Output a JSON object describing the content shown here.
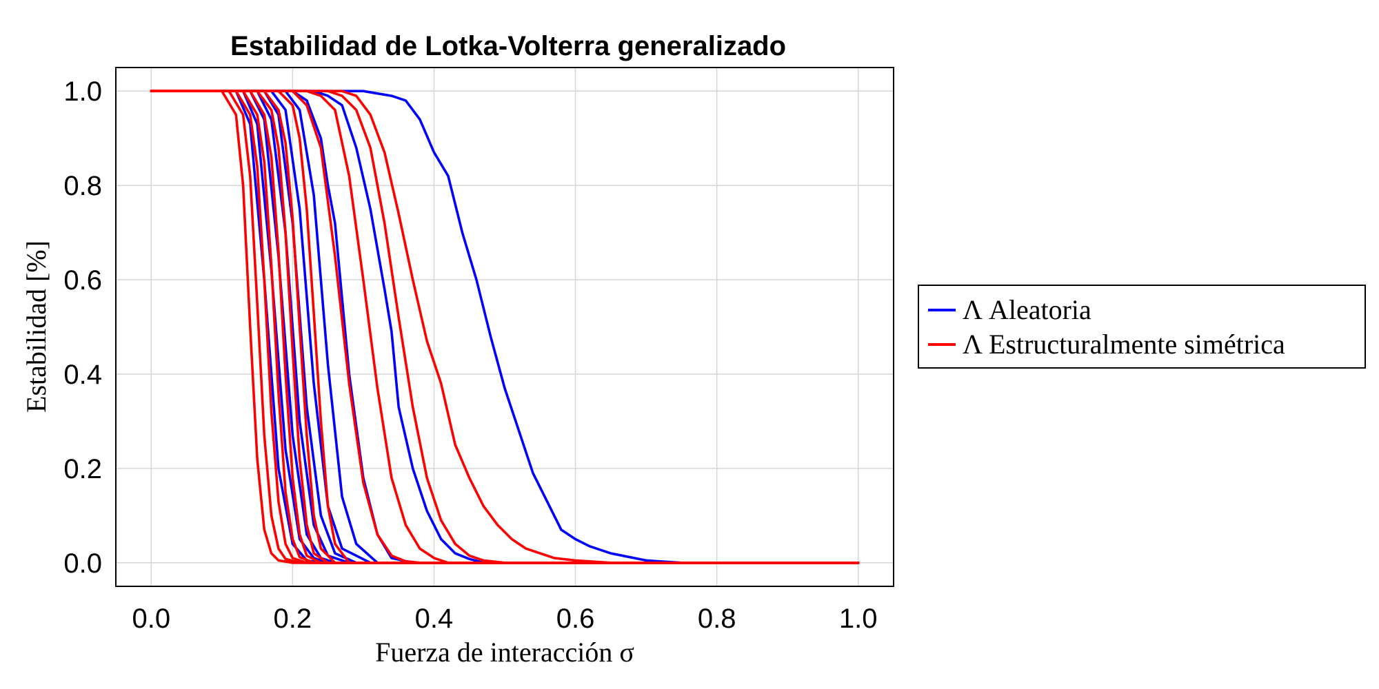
{
  "chart_data": {
    "type": "line",
    "title": "Estabilidad de Lotka-Volterra generalizado",
    "xlabel": "Fuerza de interacción σ",
    "ylabel": "Estabilidad [%]",
    "xlim": [
      -0.05,
      1.05
    ],
    "ylim": [
      -0.05,
      1.05
    ],
    "xticks": [
      "0.0",
      "0.2",
      "0.4",
      "0.6",
      "0.8",
      "1.0"
    ],
    "yticks": [
      "0.0",
      "0.2",
      "0.4",
      "0.6",
      "0.8",
      "1.0"
    ],
    "grid": true,
    "legend_position": "right-outside",
    "legend": [
      {
        "label": "Λ Aleatoria",
        "color": "#0000ff"
      },
      {
        "label": "Λ Estructuralmente simétrica",
        "color": "#ff0000"
      }
    ],
    "series": [
      {
        "group": "Λ Aleatoria",
        "color": "#0000ff",
        "x": [
          0.0,
          0.12,
          0.14,
          0.16,
          0.18,
          0.2,
          0.22,
          0.24,
          1.0
        ],
        "y": [
          1.0,
          1.0,
          0.93,
          0.6,
          0.2,
          0.04,
          0.005,
          0.0,
          0.0
        ]
      },
      {
        "group": "Λ Aleatoria",
        "color": "#0000ff",
        "x": [
          0.0,
          0.13,
          0.15,
          0.17,
          0.19,
          0.21,
          0.23,
          0.25,
          1.0
        ],
        "y": [
          1.0,
          1.0,
          0.93,
          0.62,
          0.24,
          0.05,
          0.01,
          0.0,
          0.0
        ]
      },
      {
        "group": "Λ Aleatoria",
        "color": "#0000ff",
        "x": [
          0.0,
          0.14,
          0.16,
          0.18,
          0.2,
          0.22,
          0.24,
          0.26,
          1.0
        ],
        "y": [
          1.0,
          1.0,
          0.94,
          0.65,
          0.27,
          0.06,
          0.01,
          0.0,
          0.0
        ]
      },
      {
        "group": "Λ Aleatoria",
        "color": "#0000ff",
        "x": [
          0.0,
          0.15,
          0.17,
          0.19,
          0.21,
          0.23,
          0.25,
          0.28,
          1.0
        ],
        "y": [
          1.0,
          1.0,
          0.94,
          0.7,
          0.3,
          0.08,
          0.015,
          0.0,
          0.0
        ]
      },
      {
        "group": "Λ Aleatoria",
        "color": "#0000ff",
        "x": [
          0.0,
          0.16,
          0.18,
          0.2,
          0.22,
          0.24,
          0.26,
          0.29,
          1.0
        ],
        "y": [
          1.0,
          1.0,
          0.95,
          0.72,
          0.33,
          0.1,
          0.02,
          0.0,
          0.0
        ]
      },
      {
        "group": "Λ Aleatoria",
        "color": "#0000ff",
        "x": [
          0.0,
          0.17,
          0.19,
          0.21,
          0.23,
          0.25,
          0.27,
          0.31,
          1.0
        ],
        "y": [
          1.0,
          1.0,
          0.96,
          0.75,
          0.38,
          0.12,
          0.03,
          0.0,
          0.0
        ]
      },
      {
        "group": "Λ Aleatoria",
        "color": "#0000ff",
        "x": [
          0.0,
          0.19,
          0.21,
          0.23,
          0.25,
          0.27,
          0.29,
          0.32,
          1.0
        ],
        "y": [
          1.0,
          1.0,
          0.96,
          0.78,
          0.42,
          0.14,
          0.04,
          0.0,
          0.0
        ]
      },
      {
        "group": "Λ Aleatoria",
        "color": "#0000ff",
        "x": [
          0.0,
          0.2,
          0.22,
          0.24,
          0.25,
          0.26,
          0.28,
          0.3,
          0.32,
          0.34,
          0.37,
          1.0
        ],
        "y": [
          1.0,
          1.0,
          0.98,
          0.9,
          0.8,
          0.72,
          0.4,
          0.18,
          0.06,
          0.01,
          0.0,
          0.0
        ]
      },
      {
        "group": "Λ Aleatoria",
        "color": "#0000ff",
        "x": [
          0.0,
          0.2,
          0.23,
          0.25,
          0.27,
          0.29,
          0.31,
          0.33,
          0.34,
          0.35,
          0.37,
          0.39,
          0.41,
          0.43,
          0.45,
          0.47,
          1.0
        ],
        "y": [
          1.0,
          1.0,
          1.0,
          0.99,
          0.97,
          0.88,
          0.75,
          0.58,
          0.49,
          0.33,
          0.2,
          0.11,
          0.05,
          0.02,
          0.008,
          0.0,
          0.0
        ]
      },
      {
        "group": "Λ Aleatoria",
        "color": "#0000ff",
        "x": [
          0.0,
          0.3,
          0.32,
          0.34,
          0.36,
          0.38,
          0.4,
          0.42,
          0.44,
          0.46,
          0.48,
          0.5,
          0.52,
          0.54,
          0.56,
          0.58,
          0.6,
          0.62,
          0.65,
          0.7,
          0.75,
          1.0
        ],
        "y": [
          1.0,
          1.0,
          0.995,
          0.99,
          0.98,
          0.94,
          0.87,
          0.82,
          0.7,
          0.6,
          0.48,
          0.37,
          0.28,
          0.19,
          0.13,
          0.07,
          0.05,
          0.035,
          0.02,
          0.005,
          0.0,
          0.0
        ]
      },
      {
        "group": "Λ Estructuralmente simétrica",
        "color": "#ff0000",
        "x": [
          0.0,
          0.1,
          0.12,
          0.13,
          0.14,
          0.15,
          0.16,
          0.17,
          0.18,
          0.2,
          1.0
        ],
        "y": [
          1.0,
          1.0,
          0.95,
          0.8,
          0.5,
          0.22,
          0.07,
          0.02,
          0.005,
          0.0,
          0.0
        ]
      },
      {
        "group": "Λ Estructuralmente simétrica",
        "color": "#ff0000",
        "x": [
          0.0,
          0.11,
          0.13,
          0.14,
          0.15,
          0.16,
          0.17,
          0.18,
          0.19,
          0.21,
          1.0
        ],
        "y": [
          1.0,
          1.0,
          0.95,
          0.82,
          0.55,
          0.27,
          0.1,
          0.03,
          0.008,
          0.0,
          0.0
        ]
      },
      {
        "group": "Λ Estructuralmente simétrica",
        "color": "#ff0000",
        "x": [
          0.0,
          0.12,
          0.14,
          0.15,
          0.16,
          0.17,
          0.18,
          0.19,
          0.2,
          0.22,
          1.0
        ],
        "y": [
          1.0,
          1.0,
          0.95,
          0.84,
          0.6,
          0.32,
          0.13,
          0.04,
          0.01,
          0.0,
          0.0
        ]
      },
      {
        "group": "Λ Estructuralmente simétrica",
        "color": "#ff0000",
        "x": [
          0.0,
          0.13,
          0.15,
          0.16,
          0.17,
          0.18,
          0.19,
          0.2,
          0.21,
          0.23,
          1.0
        ],
        "y": [
          1.0,
          1.0,
          0.95,
          0.85,
          0.63,
          0.36,
          0.15,
          0.05,
          0.012,
          0.0,
          0.0
        ]
      },
      {
        "group": "Λ Estructuralmente simétrica",
        "color": "#ff0000",
        "x": [
          0.0,
          0.14,
          0.16,
          0.17,
          0.18,
          0.19,
          0.2,
          0.21,
          0.22,
          0.24,
          1.0
        ],
        "y": [
          1.0,
          1.0,
          0.95,
          0.86,
          0.66,
          0.4,
          0.18,
          0.06,
          0.015,
          0.0,
          0.0
        ]
      },
      {
        "group": "Λ Estructuralmente simétrica",
        "color": "#ff0000",
        "x": [
          0.0,
          0.15,
          0.17,
          0.18,
          0.19,
          0.2,
          0.21,
          0.22,
          0.23,
          0.25,
          1.0
        ],
        "y": [
          1.0,
          1.0,
          0.96,
          0.88,
          0.7,
          0.45,
          0.22,
          0.08,
          0.02,
          0.0,
          0.0
        ]
      },
      {
        "group": "Λ Estructuralmente simétrica",
        "color": "#ff0000",
        "x": [
          0.0,
          0.16,
          0.18,
          0.19,
          0.2,
          0.21,
          0.22,
          0.23,
          0.24,
          0.26,
          1.0
        ],
        "y": [
          1.0,
          1.0,
          0.96,
          0.89,
          0.73,
          0.5,
          0.27,
          0.1,
          0.03,
          0.0,
          0.0
        ]
      },
      {
        "group": "Λ Estructuralmente simétrica",
        "color": "#ff0000",
        "x": [
          0.0,
          0.18,
          0.2,
          0.21,
          0.22,
          0.23,
          0.24,
          0.25,
          0.26,
          0.28,
          1.0
        ],
        "y": [
          1.0,
          1.0,
          0.97,
          0.9,
          0.75,
          0.53,
          0.3,
          0.12,
          0.04,
          0.0,
          0.0
        ]
      },
      {
        "group": "Λ Estructuralmente simétrica",
        "color": "#ff0000",
        "x": [
          0.0,
          0.2,
          0.22,
          0.24,
          0.26,
          0.28,
          0.3,
          0.32,
          0.34,
          0.36,
          0.38,
          1.0
        ],
        "y": [
          1.0,
          1.0,
          0.97,
          0.88,
          0.65,
          0.38,
          0.17,
          0.06,
          0.015,
          0.003,
          0.0,
          0.0
        ]
      },
      {
        "group": "Λ Estructuralmente simétrica",
        "color": "#ff0000",
        "x": [
          0.0,
          0.22,
          0.24,
          0.26,
          0.28,
          0.3,
          0.32,
          0.34,
          0.36,
          0.38,
          0.4,
          0.42,
          1.0
        ],
        "y": [
          1.0,
          1.0,
          0.99,
          0.96,
          0.82,
          0.6,
          0.37,
          0.18,
          0.08,
          0.03,
          0.01,
          0.0,
          0.0
        ]
      },
      {
        "group": "Λ Estructuralmente simétrica",
        "color": "#ff0000",
        "x": [
          0.0,
          0.25,
          0.27,
          0.29,
          0.31,
          0.33,
          0.35,
          0.37,
          0.39,
          0.41,
          0.43,
          0.45,
          0.47,
          0.5,
          1.0
        ],
        "y": [
          1.0,
          1.0,
          0.99,
          0.96,
          0.88,
          0.72,
          0.52,
          0.33,
          0.18,
          0.09,
          0.04,
          0.015,
          0.005,
          0.0,
          0.0
        ]
      },
      {
        "group": "Λ Estructuralmente simétrica",
        "color": "#ff0000",
        "x": [
          0.0,
          0.25,
          0.27,
          0.29,
          0.31,
          0.33,
          0.35,
          0.37,
          0.39,
          0.41,
          0.43,
          0.45,
          0.47,
          0.49,
          0.51,
          0.53,
          0.55,
          0.57,
          0.6,
          0.65,
          1.0
        ],
        "y": [
          1.0,
          1.0,
          1.0,
          0.99,
          0.95,
          0.87,
          0.74,
          0.6,
          0.47,
          0.38,
          0.25,
          0.18,
          0.12,
          0.08,
          0.05,
          0.03,
          0.02,
          0.01,
          0.005,
          0.0,
          0.0
        ]
      }
    ]
  }
}
